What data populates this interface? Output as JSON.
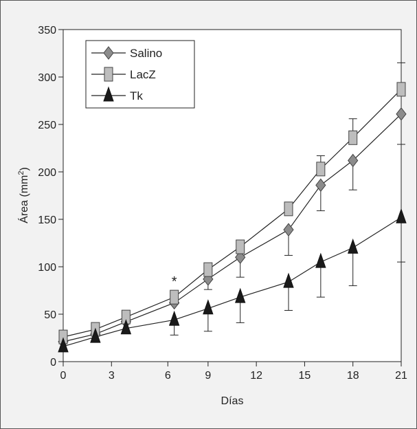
{
  "chart_data": {
    "type": "line",
    "title": "",
    "xlabel": "Días",
    "ylabel_main": "Área (mm",
    "ylabel_sup": "2",
    "ylabel_close": ")",
    "xlim": [
      0,
      21
    ],
    "ylim": [
      0,
      350
    ],
    "xticks": [
      0,
      3,
      6,
      9,
      12,
      15,
      18,
      21
    ],
    "xtick_positions": [
      0,
      3,
      6.5,
      9,
      12,
      15,
      18,
      21
    ],
    "yticks": [
      0,
      50,
      100,
      150,
      200,
      250,
      300,
      350
    ],
    "grid": false,
    "legend_position": "top-left",
    "annotation": {
      "text": "*",
      "x": 6.9,
      "y": 87
    },
    "series": [
      {
        "name": "Salino",
        "marker": "diamond",
        "color": "#8c8c8c",
        "x": [
          0,
          2,
          3.9,
          6.9,
          9,
          11,
          14,
          16,
          18,
          21
        ],
        "y": [
          21,
          29,
          42,
          62,
          87,
          110,
          139,
          186,
          212,
          261
        ],
        "err": [
          0,
          0,
          0,
          0,
          11,
          21,
          27,
          27,
          31,
          32
        ]
      },
      {
        "name": "LacZ",
        "marker": "square",
        "color": "#bdbdbd",
        "x": [
          0,
          2,
          3.9,
          6.9,
          9,
          11,
          14,
          16,
          18,
          21
        ],
        "y": [
          26,
          34,
          47,
          68,
          97,
          121,
          161,
          203,
          236,
          287
        ],
        "err": [
          0,
          0,
          0,
          0,
          0,
          0,
          0,
          14,
          20,
          28
        ]
      },
      {
        "name": "Tk",
        "marker": "triangle",
        "color": "#1a1a1a",
        "x": [
          0,
          2,
          3.9,
          6.9,
          9,
          11,
          14,
          16,
          18,
          21
        ],
        "y": [
          16,
          26,
          35,
          44,
          56,
          68,
          84,
          105,
          120,
          152
        ],
        "err": [
          0,
          0,
          0,
          16,
          24,
          27,
          30,
          37,
          40,
          47
        ]
      }
    ]
  }
}
